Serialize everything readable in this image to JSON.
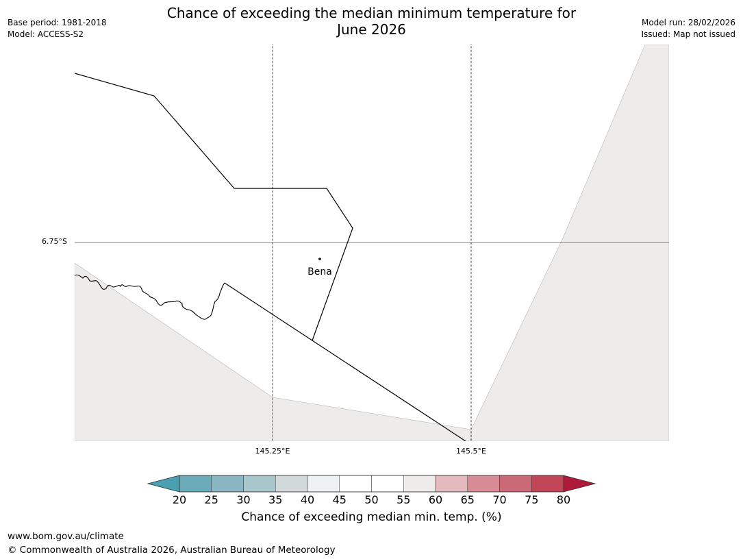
{
  "header": {
    "title_line1": "Chance of exceeding the median minimum temperature for",
    "title_line2": "June 2026",
    "base_period": "Base period: 1981-2018",
    "model": "Model: ACCESS-S2",
    "model_run": "Model run: 28/02/2026",
    "issued": "Issued: Map not issued"
  },
  "map": {
    "longitude_labels": [
      "145.25°E",
      "145.5°E"
    ],
    "latitude_labels": [
      "6.75°S"
    ],
    "places": [
      {
        "name": "Bena"
      }
    ],
    "colors": {
      "outside_region": "#eeecea",
      "inside_region": "#ffffff",
      "grid": "#000000",
      "boundary": "#000000"
    }
  },
  "colorbar": {
    "title": "Chance of exceeding median min. temp. (%)",
    "ticks": [
      "20",
      "25",
      "30",
      "35",
      "40",
      "45",
      "50",
      "55",
      "60",
      "65",
      "70",
      "75",
      "80"
    ],
    "under_color": "#4aa0b1",
    "over_color": "#b01a3a",
    "bins": [
      {
        "range": "20-25",
        "color": "#6aaab9"
      },
      {
        "range": "25-30",
        "color": "#8ab6c3"
      },
      {
        "range": "30-35",
        "color": "#a8c6cc"
      },
      {
        "range": "35-40",
        "color": "#d1d9da"
      },
      {
        "range": "40-45",
        "color": "#ecf1f3"
      },
      {
        "range": "45-50",
        "color": "#ffffff"
      },
      {
        "range": "50-55",
        "color": "#ffffff"
      },
      {
        "range": "55-60",
        "color": "#eeecea"
      },
      {
        "range": "60-65",
        "color": "#e4b9bd"
      },
      {
        "range": "65-70",
        "color": "#d78b94"
      },
      {
        "range": "70-75",
        "color": "#cb6a77"
      },
      {
        "range": "75-80",
        "color": "#c14556"
      }
    ]
  },
  "footer": {
    "url": "www.bom.gov.au/climate",
    "copyright": "© Commonwealth of Australia 2026, Australian Bureau of Meteorology"
  }
}
